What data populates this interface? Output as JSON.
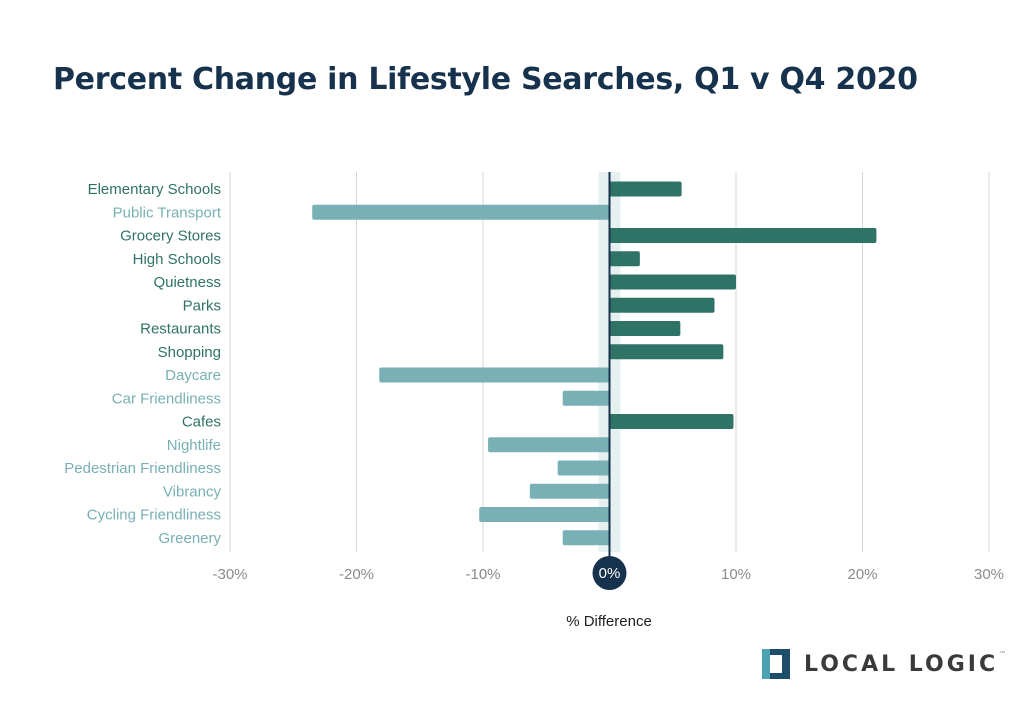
{
  "title": "Percent Change in Lifestyle Searches, Q1 v Q4 2020",
  "logo": {
    "text": "LOCAL LOGIC",
    "tm": "™",
    "icon": "local-logic-logo-icon"
  },
  "colors": {
    "positive": "#2f7367",
    "negative": "#78b0b5",
    "title": "#17324d",
    "zero": "#17324d"
  },
  "chart_data": {
    "type": "bar",
    "orientation": "horizontal",
    "categories": [
      "Elementary Schools",
      "Public Transport",
      "Grocery Stores",
      "High Schools",
      "Quietness",
      "Parks",
      "Restaurants",
      "Shopping",
      "Daycare",
      "Car Friendliness",
      "Cafes",
      "Nightlife",
      "Pedestrian Friendliness",
      "Vibrancy",
      "Cycling Friendliness",
      "Greenery"
    ],
    "values": [
      5.7,
      -23.5,
      21.1,
      2.4,
      10.0,
      8.3,
      5.6,
      9.0,
      -18.2,
      -3.7,
      9.8,
      -9.6,
      -4.1,
      -6.3,
      -10.3,
      -3.7
    ],
    "xlabel": "% Difference",
    "ylabel": "",
    "xlim": [
      -30,
      30
    ],
    "xticks": [
      -30,
      -20,
      -10,
      0,
      10,
      20,
      30
    ],
    "xtick_labels": [
      "-30%",
      "-20%",
      "-10%",
      "0%",
      "10%",
      "20%",
      "30%"
    ],
    "grid": true,
    "legend": "none"
  }
}
